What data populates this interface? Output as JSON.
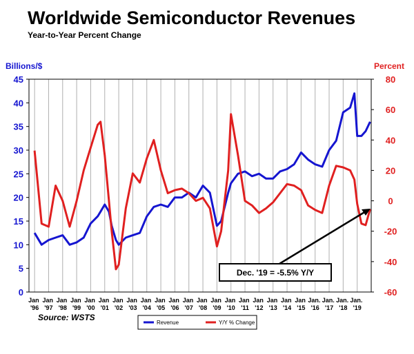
{
  "chart_data": {
    "type": "line",
    "title": "Worldwide Semiconductor Revenues",
    "subtitle": "Year-to-Year Percent Change",
    "y_label": "Billions/$",
    "y2_label": "Percent",
    "source": "Source: WSTS",
    "annotation": "Dec. '19 = -5.5% Y/Y",
    "grid": true,
    "legend": "bottom",
    "xlim": [
      1995.6,
      2020.0
    ],
    "xticks": [
      {
        "value": 1996,
        "label": "Jan '96"
      },
      {
        "value": 1997,
        "label": "Jan '97"
      },
      {
        "value": 1998,
        "label": "Jan '98"
      },
      {
        "value": 1999,
        "label": "Jan '99"
      },
      {
        "value": 2000,
        "label": "Jan '00"
      },
      {
        "value": 2001,
        "label": "Jan '01"
      },
      {
        "value": 2002,
        "label": "Jan '02"
      },
      {
        "value": 2003,
        "label": "Jan '03"
      },
      {
        "value": 2004,
        "label": "Jan '04"
      },
      {
        "value": 2005,
        "label": "Jan '05"
      },
      {
        "value": 2006,
        "label": "Jan '06"
      },
      {
        "value": 2007,
        "label": "Jan '07"
      },
      {
        "value": 2008,
        "label": "Jan '08"
      },
      {
        "value": 2009,
        "label": "Jan '09"
      },
      {
        "value": 2010,
        "label": "Jan '10"
      },
      {
        "value": 2011,
        "label": "Jan '11"
      },
      {
        "value": 2012,
        "label": "Jan '12"
      },
      {
        "value": 2013,
        "label": "Jan '13"
      },
      {
        "value": 2014,
        "label": "Jan '14"
      },
      {
        "value": 2015,
        "label": "Jan '15"
      },
      {
        "value": 2016,
        "label": "Jan. '16"
      },
      {
        "value": 2017,
        "label": "Jan. '17"
      },
      {
        "value": 2018,
        "label": "Jan. '18"
      },
      {
        "value": 2019,
        "label": "Jan. '19"
      }
    ],
    "ylim": [
      0,
      45
    ],
    "yticks": [
      0,
      5,
      10,
      15,
      20,
      25,
      30,
      35,
      40,
      45
    ],
    "y2lim": [
      -60,
      80
    ],
    "y2ticks": [
      -60,
      -40,
      -20,
      0,
      20,
      40,
      60,
      80
    ],
    "x": [
      1996.0,
      1996.5,
      1997.0,
      1997.5,
      1998.0,
      1998.5,
      1999.0,
      1999.5,
      2000.0,
      2000.5,
      2000.7,
      2001.0,
      2001.3,
      2001.5,
      2001.8,
      2002.0,
      2002.5,
      2003.0,
      2003.5,
      2004.0,
      2004.5,
      2005.0,
      2005.5,
      2006.0,
      2006.5,
      2007.0,
      2007.5,
      2008.0,
      2008.5,
      2009.0,
      2009.3,
      2009.8,
      2010.0,
      2010.5,
      2011.0,
      2011.5,
      2012.0,
      2012.5,
      2013.0,
      2013.5,
      2014.0,
      2014.5,
      2015.0,
      2015.5,
      2016.0,
      2016.5,
      2017.0,
      2017.5,
      2018.0,
      2018.5,
      2018.8,
      2019.0,
      2019.3,
      2019.6,
      2019.92
    ],
    "series": [
      {
        "name": "Revenue",
        "color": "#1515d0",
        "values": [
          12.5,
          10,
          11,
          11.5,
          12,
          10,
          10.5,
          11.5,
          14.5,
          16,
          17,
          18.5,
          17,
          14,
          11,
          10,
          11.5,
          12,
          12.5,
          16,
          18,
          18.5,
          18,
          20,
          20,
          21,
          20,
          22.5,
          21,
          14,
          15,
          21,
          23,
          25,
          25.5,
          24.5,
          25,
          24,
          24,
          25.5,
          26,
          27,
          29.5,
          28,
          27,
          26.5,
          30,
          32,
          38,
          39,
          42,
          33,
          33,
          34,
          36
        ]
      },
      {
        "name": "Y/Y % Change",
        "color": "#e02020",
        "axis": "y2",
        "values": [
          33,
          -15,
          -17,
          10,
          0,
          -17,
          0,
          20,
          35,
          50,
          52,
          30,
          0,
          -20,
          -45,
          -42,
          -5,
          18,
          12,
          28,
          40,
          20,
          5,
          7,
          8,
          5,
          0,
          2,
          -5,
          -30,
          -20,
          20,
          57,
          30,
          0,
          -3,
          -8,
          -5,
          -1,
          5,
          11,
          10,
          7,
          -3,
          -6,
          -8,
          10,
          23,
          22,
          20,
          14,
          -2,
          -15,
          -16,
          -5.5
        ]
      }
    ]
  }
}
